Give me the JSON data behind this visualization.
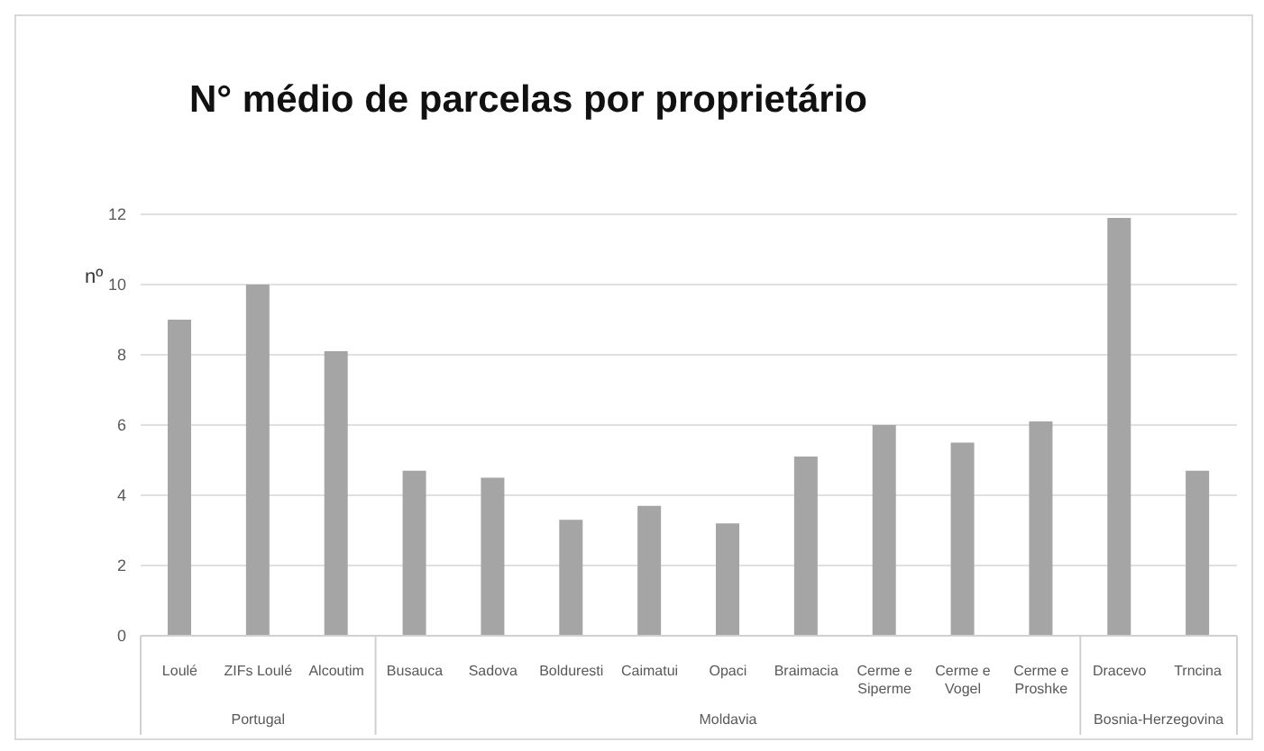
{
  "chart_data": {
    "type": "bar",
    "title": "N° médio de parcelas por proprietário",
    "ylabel": "nº",
    "categories": [
      "Loulé",
      "ZIFs Loulé",
      "Alcoutim",
      "Busauca",
      "Sadova",
      "Bolduresti",
      "Caimatui",
      "Opaci",
      "Braimacia",
      "Cerme e Siperme",
      "Cerme e Vogel",
      "Cerme e Proshke",
      "Dracevo",
      "Trncina"
    ],
    "values": [
      9.0,
      10.0,
      8.1,
      4.7,
      4.5,
      3.3,
      3.7,
      3.2,
      5.1,
      6.0,
      5.5,
      6.1,
      11.9,
      4.7
    ],
    "color": "#a5a5a5",
    "ylim": [
      0,
      12
    ],
    "yticks": [
      0,
      2,
      4,
      6,
      8,
      10,
      12
    ],
    "grid": "y",
    "legend": false,
    "annotations": [
      "Portugal",
      "Moldavia",
      "Bosnia-Herzegovina"
    ]
  }
}
